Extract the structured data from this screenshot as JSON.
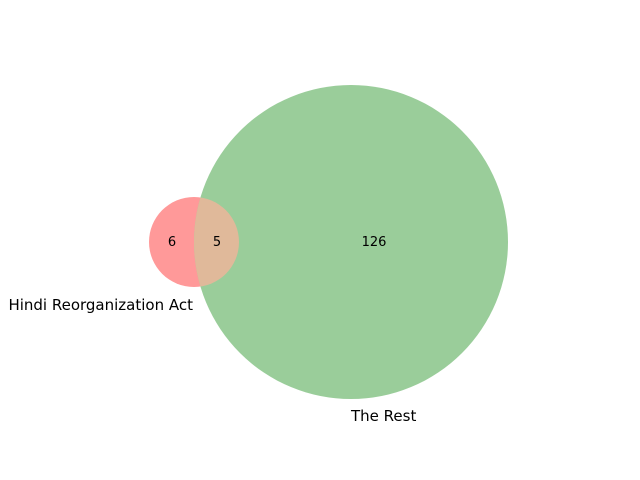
{
  "chart_data": {
    "type": "venn",
    "sets": [
      {
        "key": "a",
        "label": "Hindi Reorganization Act",
        "only_count": "6",
        "color": "#ff9999"
      },
      {
        "key": "b",
        "label": "The Rest",
        "only_count": "126",
        "color": "#9acd9a"
      }
    ],
    "intersection": {
      "count": "5",
      "color": "#e0b99a"
    }
  }
}
